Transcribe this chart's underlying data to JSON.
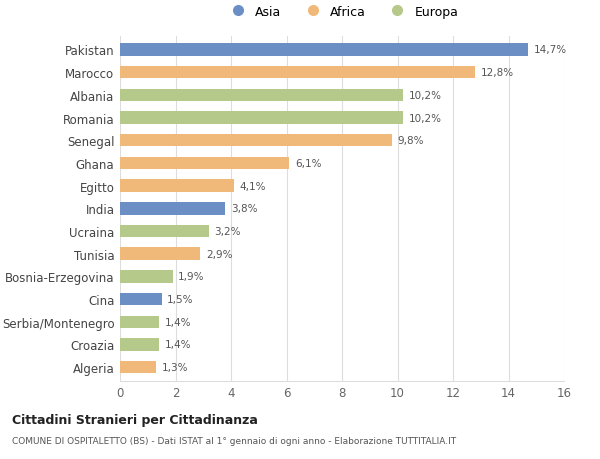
{
  "categories": [
    "Pakistan",
    "Marocco",
    "Albania",
    "Romania",
    "Senegal",
    "Ghana",
    "Egitto",
    "India",
    "Ucraina",
    "Tunisia",
    "Bosnia-Erzegovina",
    "Cina",
    "Serbia/Montenegro",
    "Croazia",
    "Algeria"
  ],
  "values": [
    14.7,
    12.8,
    10.2,
    10.2,
    9.8,
    6.1,
    4.1,
    3.8,
    3.2,
    2.9,
    1.9,
    1.5,
    1.4,
    1.4,
    1.3
  ],
  "continents": [
    "Asia",
    "Africa",
    "Europa",
    "Europa",
    "Africa",
    "Africa",
    "Africa",
    "Asia",
    "Europa",
    "Africa",
    "Europa",
    "Asia",
    "Europa",
    "Europa",
    "Africa"
  ],
  "colors": {
    "Asia": "#6b8fc4",
    "Africa": "#f0b97a",
    "Europa": "#b5c98a"
  },
  "legend_labels": [
    "Asia",
    "Africa",
    "Europa"
  ],
  "title_bold": "Cittadini Stranieri per Cittadinanza",
  "subtitle": "COMUNE DI OSPITALETTO (BS) - Dati ISTAT al 1° gennaio di ogni anno - Elaborazione TUTTITALIA.IT",
  "xlim": [
    0,
    16
  ],
  "xticks": [
    0,
    2,
    4,
    6,
    8,
    10,
    12,
    14,
    16
  ],
  "background_color": "#ffffff",
  "grid_color": "#dddddd",
  "bar_height": 0.55
}
